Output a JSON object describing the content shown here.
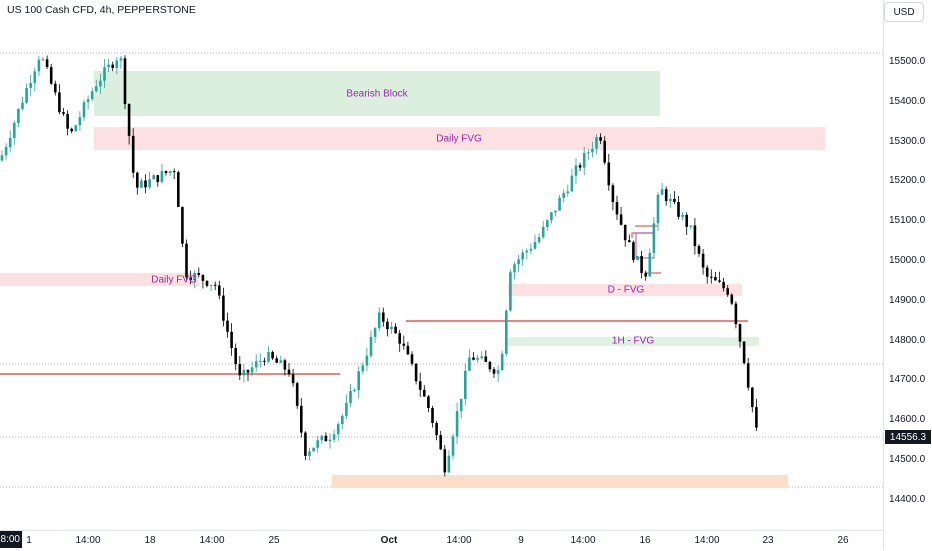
{
  "header": {
    "title": "US 100 Cash CFD, 4h, PEPPERSTONE"
  },
  "currency_button": {
    "label": "USD"
  },
  "price_axis": {
    "ticks": [
      "15500.0",
      "15400.0",
      "15300.0",
      "15200.0",
      "15100.0",
      "15000.0",
      "14900.0",
      "14800.0",
      "14700.0",
      "14600.0",
      "14500.0",
      "14400.0"
    ],
    "current_price": "14556.3"
  },
  "time_axis": {
    "cursor_label": "8:00",
    "ticks": [
      "1",
      "14:00",
      "18",
      "14:00",
      "25",
      "Oct",
      "14:00",
      "9",
      "14:00",
      "16",
      "14:00",
      "23",
      "26"
    ]
  },
  "zones": {
    "bearish_block": "Bearish Block",
    "daily_fvg_top": "Daily FVG",
    "daily_fvg_left": "Daily FVG",
    "d_fvg": "D - FVG",
    "h1_fvg": "1H - FVG"
  },
  "colors": {
    "up": "#26a69a",
    "down": "#000000",
    "bearish_block": "#dcefdf",
    "fvg": "#fde0e2",
    "h1_fvg": "#dff1e3",
    "support_zone": "#fadec9",
    "level_line": "#e53935",
    "zone_text": "#9c27b0",
    "current_price_bg": "#131722"
  },
  "chart_data": {
    "type": "candlestick",
    "symbol": "US 100 Cash CFD",
    "timeframe": "4h",
    "source": "PEPPERSTONE",
    "currency": "USD",
    "ylim": [
      14340,
      15600
    ],
    "last_price": 14556.3,
    "levels": [
      14710,
      14845
    ],
    "zones": [
      {
        "label": "Bearish Block",
        "low": 15360,
        "high": 15475
      },
      {
        "label": "Daily FVG",
        "low": 15240,
        "high": 15300
      },
      {
        "label": "Daily FVG",
        "low": 14930,
        "high": 14950
      },
      {
        "label": "D - FVG",
        "low": 14915,
        "high": 14930
      },
      {
        "label": "1H - FVG",
        "low": 14790,
        "high": 14800
      },
      {
        "low": 14425,
        "high": 14440
      }
    ]
  }
}
